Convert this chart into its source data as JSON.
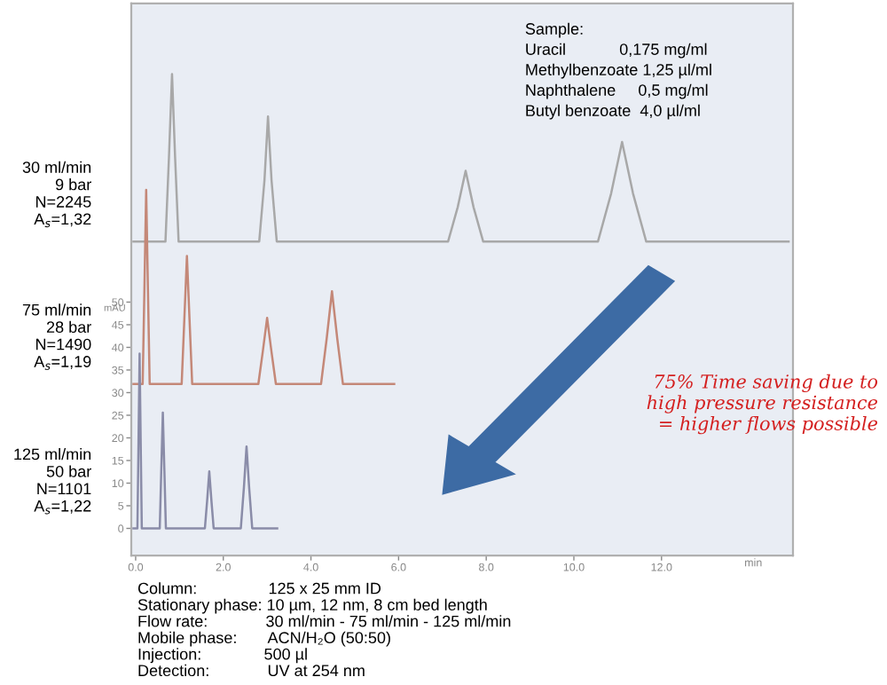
{
  "chart_data": {
    "type": "line",
    "xlabel": "min",
    "ylabel": "mAU",
    "xlim": [
      -0.1,
      15.0
    ],
    "ylim": [
      -6,
      116
    ],
    "xticks": [
      {
        "value": 0,
        "label": "0.0"
      },
      {
        "value": 2,
        "label": "2.0"
      },
      {
        "value": 4,
        "label": "4.0"
      },
      {
        "value": 6,
        "label": "6.0"
      },
      {
        "value": 8,
        "label": "8.0"
      },
      {
        "value": 10,
        "label": "10.0"
      },
      {
        "value": 12,
        "label": "12.0"
      }
    ],
    "yticks": [
      0,
      5,
      10,
      15,
      20,
      25,
      30,
      35,
      40,
      45,
      50
    ],
    "grid": false,
    "legend": false,
    "marker": "none",
    "line_style": "solid",
    "series": [
      {
        "name": "30 ml/min\n9 bar\nN=2245\nA$_{s}$=1,32",
        "color": "#a8a8a8",
        "x": [
          -0.05,
          0.68,
          0.76,
          0.83,
          0.9,
          0.98,
          2.82,
          2.94,
          3.02,
          3.1,
          3.22,
          7.13,
          7.35,
          7.53,
          7.71,
          7.93,
          10.55,
          10.85,
          11.1,
          11.35,
          11.65,
          14.9
        ],
        "values": [
          63.4,
          63.4,
          82,
          100.4,
          82,
          63.4,
          63.4,
          77,
          91,
          77,
          63.4,
          63.4,
          71,
          79,
          71,
          63.4,
          63.4,
          74,
          85.4,
          74,
          63.4,
          63.4
        ]
      },
      {
        "name": "75 ml/min\n28 bar\nN=1490\nA$_{s}$=1,19",
        "color": "#c48878",
        "x": [
          -0.05,
          0.16,
          0.2,
          0.24,
          0.28,
          0.32,
          1.05,
          1.11,
          1.17,
          1.23,
          1.29,
          2.8,
          2.9,
          3.0,
          3.1,
          3.2,
          4.23,
          4.36,
          4.48,
          4.6,
          4.73,
          5.9
        ],
        "values": [
          31.9,
          31.9,
          53,
          74.8,
          53,
          31.9,
          31.9,
          46,
          60.2,
          46,
          31.9,
          31.9,
          39,
          46.5,
          39,
          31.9,
          31.9,
          42,
          52.4,
          42,
          31.9,
          31.9
        ]
      },
      {
        "name": "125 ml/min\n50 bar\nN=1101\nA$_{s}$=1,22",
        "color": "#8a8ca8",
        "x": [
          -0.05,
          0.04,
          0.065,
          0.09,
          0.115,
          0.14,
          0.55,
          0.585,
          0.62,
          0.655,
          0.69,
          1.58,
          1.63,
          1.68,
          1.73,
          1.78,
          2.4,
          2.47,
          2.53,
          2.59,
          2.66,
          3.23
        ],
        "values": [
          0,
          0,
          19,
          38.6,
          19,
          0,
          0,
          13,
          25.6,
          13,
          0,
          0,
          6,
          12.6,
          6,
          0,
          0,
          9,
          18.1,
          9,
          0,
          0
        ]
      }
    ],
    "annotations": [
      "Sample:",
      "Uracil            0,175 mg/ml",
      "Methylbenzoate 1,25 µl/ml",
      "Naphthalene     0,5 mg/ml",
      "Butyl benzoate  4,0 µl/ml",
      "75% Time saving due to\nhigh pressure resistance\n= higher flows possible",
      "Column:                125 x 25 mm ID",
      "Stationary phase: 10 µm, 12 nm, 8 cm bed length",
      "Flow rate:             30 ml/min - 75 ml/min - 125 ml/min",
      "Mobile phase:       ACN/H₂O (50:50)",
      "Injection:              500 µl",
      "Detection:             UV at 254 nm"
    ]
  }
}
